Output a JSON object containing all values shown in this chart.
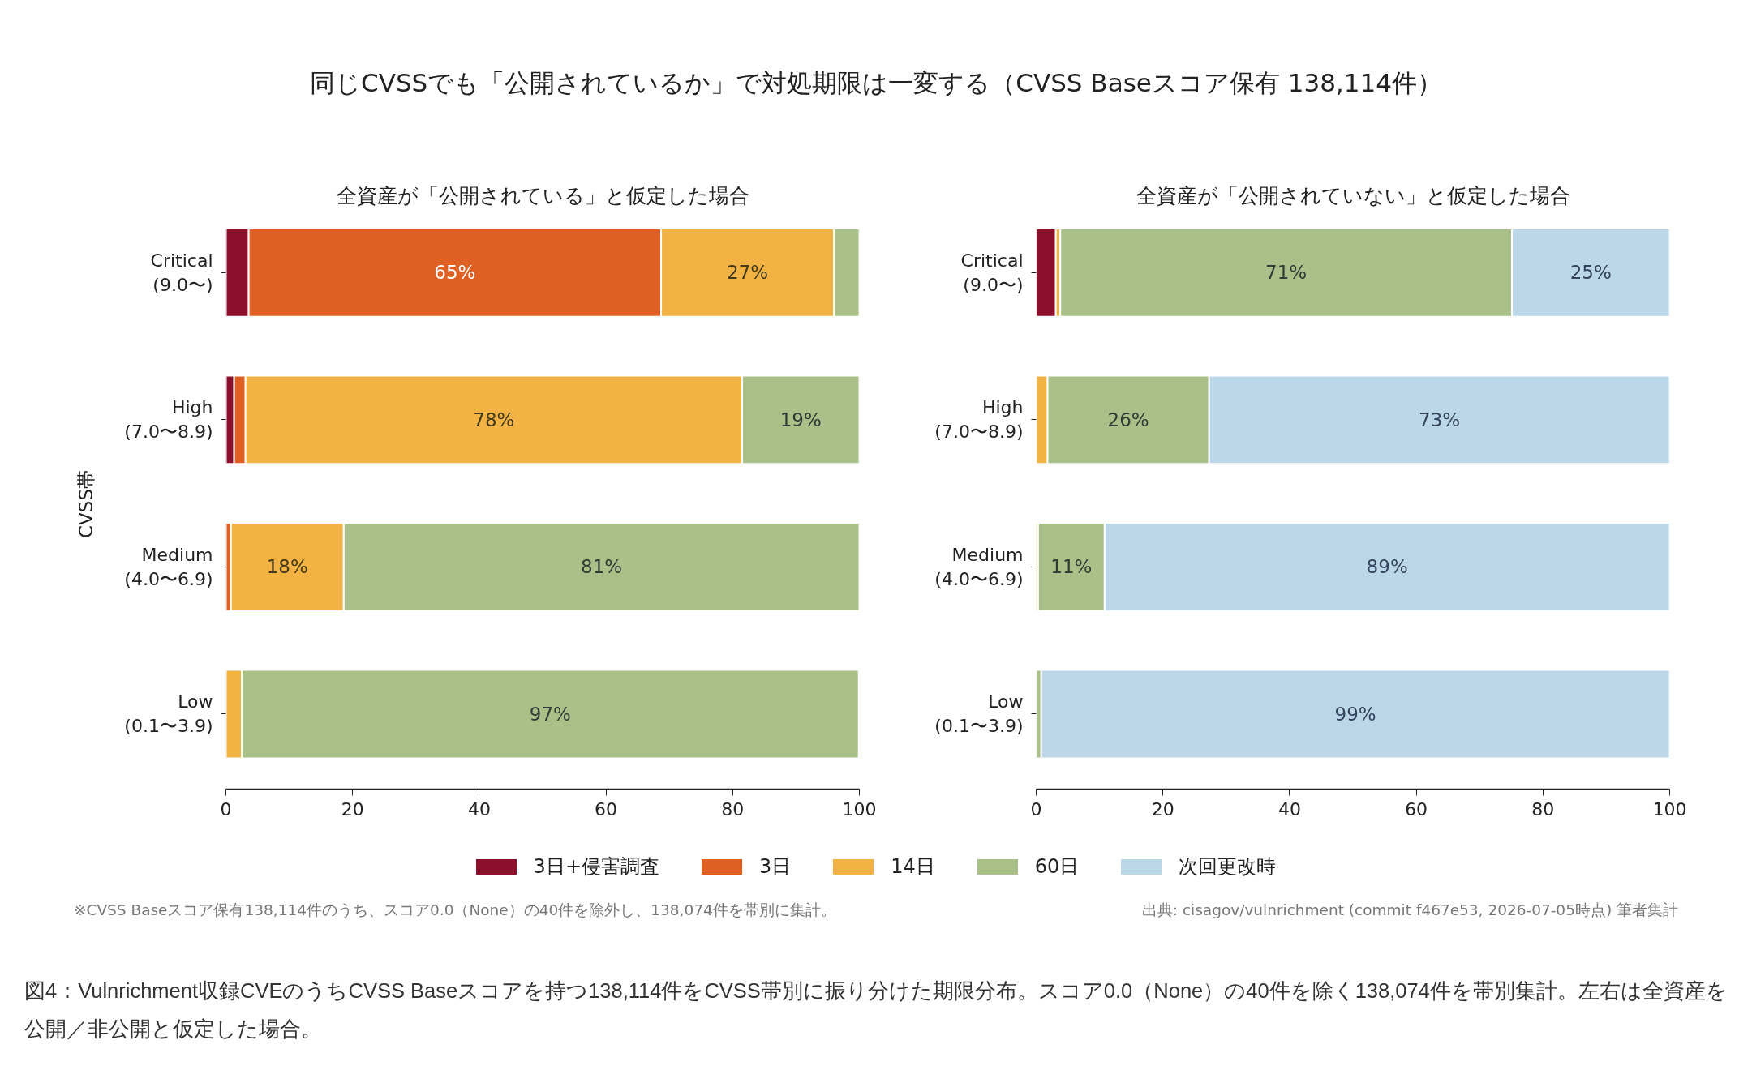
{
  "chart_data": [
    {
      "type": "bar",
      "orientation": "horizontal",
      "stacked": true,
      "title": "同じCVSSでも「公開されているか」で対処期限は一変する（CVSS Baseスコア保有 138,114件）",
      "subtitle": "全資産が「公開されている」と仮定した場合",
      "ylabel": "CVSS帯",
      "categories": [
        "Critical\n(9.0〜)",
        "High\n(7.0〜8.9)",
        "Medium\n(4.0〜6.9)",
        "Low\n(0.1〜3.9)"
      ],
      "xlim": [
        0,
        100
      ],
      "xticks": [
        0,
        20,
        40,
        60,
        80,
        100
      ],
      "legend": "bottom",
      "series": [
        {
          "name": "3日+侵害調査",
          "color": "#8c0f2c",
          "values": [
            3.6,
            1.3,
            null,
            null
          ]
        },
        {
          "name": "3日",
          "color": "#e06024",
          "values": [
            65.1,
            1.8,
            0.8,
            null
          ],
          "value_labels": [
            "65%",
            null,
            null,
            null
          ]
        },
        {
          "name": "14日",
          "color": "#f2b344",
          "values": [
            27.3,
            78.4,
            17.8,
            2.5
          ],
          "value_labels": [
            "27%",
            "78%",
            "18%",
            null
          ]
        },
        {
          "name": "60日",
          "color": "#a9c089",
          "values": [
            4.0,
            18.5,
            81.4,
            97.4
          ],
          "value_labels": [
            null,
            "19%",
            "81%",
            "97%"
          ]
        },
        {
          "name": "次回更改時",
          "color": "#bcd7e8",
          "values": [
            null,
            null,
            null,
            null
          ]
        }
      ],
      "annotations": [
        "※CVSS Baseスコア保有138,114件のうち、スコア0.0（None）の40件を除外し、138,074件を帯別に集計。",
        "図4：Vulnrichment収録CVEのうちCVSS Baseスコアを持つ138,114件をCVSS帯別に振り分けた期限分布。スコア0.0（None）の40件を除く138,074件を帯別集計。左右は全資産を公開／非公開と仮定した場合。"
      ]
    },
    {
      "type": "bar",
      "orientation": "horizontal",
      "stacked": true,
      "subtitle": "全資産が「公開されていない」と仮定した場合",
      "categories": [
        "Critical\n(9.0〜)",
        "High\n(7.0〜8.9)",
        "Medium\n(4.0〜6.9)",
        "Low\n(0.1〜3.9)"
      ],
      "xlim": [
        0,
        100
      ],
      "xticks": [
        0,
        20,
        40,
        60,
        80,
        100
      ],
      "series": [
        {
          "color": "#8c0f2c",
          "values": [
            3.1,
            null,
            null,
            null
          ]
        },
        {
          "color": "#f2b344",
          "values": [
            0.7,
            1.8,
            0.3,
            null
          ]
        },
        {
          "color": "#a9c089",
          "values": [
            71.3,
            25.5,
            10.5,
            0.8
          ],
          "value_labels": [
            "71%",
            "26%",
            "11%",
            null
          ]
        },
        {
          "color": "#bcd7e8",
          "values": [
            24.9,
            72.7,
            89.2,
            99.2
          ],
          "value_labels": [
            "25%",
            "73%",
            "89%",
            "99%"
          ]
        }
      ],
      "annotations": [
        "出典: cisagov/vulnrichment (commit f467e53, 2026-07-05時点) 筆者集計"
      ]
    }
  ]
}
